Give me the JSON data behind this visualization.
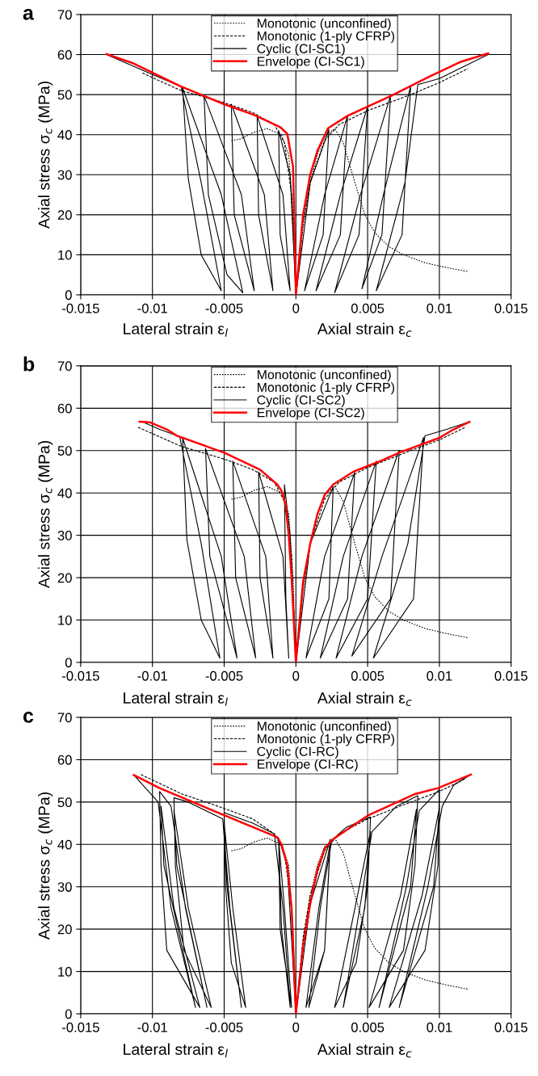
{
  "chart_data": [
    {
      "type": "line",
      "title": "a",
      "xlabel": "Lateral strain ε$_{l}$",
      "ylabel": "Axial stress σ$_{c}$ (MPa)",
      "annotations": [
        "Axial strain ε$_{c}$"
      ],
      "xlim": [
        -0.015,
        0.015
      ],
      "ylim": [
        0,
        70
      ],
      "xticks": [
        -0.015,
        -0.01,
        -0.005,
        0,
        0.005,
        0.01,
        0.015
      ],
      "yticks": [
        0,
        10,
        20,
        30,
        40,
        50,
        60,
        70
      ],
      "grid": true,
      "legend": "top",
      "marker": "none",
      "series": [
        {
          "name": "Monotonic (unconfined)",
          "color": "#000000",
          "line_style": "dotted",
          "x": [
            -0.0045,
            -0.0038,
            -0.003,
            -0.002,
            -0.001,
            -0.0005,
            -0.0002,
            0,
            null,
            0,
            0.0005,
            0.001,
            0.0015,
            0.002,
            0.0027,
            0.0033,
            0.0037,
            0.0042,
            0.0048,
            0.0055,
            0.0065,
            0.0075,
            0.009,
            0.0105,
            0.012
          ],
          "values": [
            38.5,
            39,
            40.5,
            41.5,
            40,
            35,
            20,
            0,
            null,
            0,
            17,
            28,
            35,
            39.5,
            41.5,
            38,
            33,
            27,
            20,
            15.5,
            12,
            10,
            8,
            6.8,
            5.8
          ]
        },
        {
          "name": "Monotonic (1-ply CFRP)",
          "color": "#000000",
          "line_style": "dashed",
          "x": [
            -0.0107,
            -0.008,
            -0.005,
            -0.003,
            -0.0015,
            -0.0008,
            -0.0003,
            0,
            null,
            0,
            0.0005,
            0.001,
            0.002,
            0.003,
            0.005,
            0.008,
            0.01,
            0.012
          ],
          "values": [
            55.4,
            51,
            48,
            45.5,
            42.5,
            38,
            25,
            0,
            null,
            0,
            18,
            28,
            38.5,
            42.5,
            46,
            50,
            53,
            56.5
          ]
        },
        {
          "name": "Cyclic (CI-SC1)",
          "color": "#000000",
          "line_style": "solid",
          "x": [
            0,
            -0.0004,
            -0.0012,
            -0.0011,
            -0.0004,
            -0.0009,
            -0.0027,
            -0.0026,
            -0.0016,
            -0.0022,
            -0.0045,
            -0.0043,
            -0.0029,
            -0.0038,
            -0.0064,
            -0.0061,
            -0.0048,
            -0.0037,
            -0.0052,
            -0.0079,
            -0.0075,
            -0.0066,
            -0.0052,
            -0.0066,
            -0.008,
            -0.01,
            -0.0132,
            null,
            0,
            0.001,
            0.0023,
            0.0019,
            0.0006,
            0.002,
            0.0036,
            0.0031,
            0.0014,
            0.0031,
            0.005,
            0.0044,
            0.0027,
            0.0045,
            0.0066,
            0.006,
            0.0046,
            0.0061,
            0.008,
            0.0074,
            0.0056,
            0.0076,
            0.0085,
            0.01,
            0.0134
          ],
          "values": [
            0,
            30,
            41,
            15,
            1,
            25,
            44.6,
            20,
            1,
            25,
            47.6,
            20,
            1,
            25,
            49.7,
            25,
            5,
            0.5,
            25,
            51.7,
            29,
            10,
            1,
            28,
            52,
            55,
            60,
            null,
            0,
            28,
            41.3,
            15,
            1,
            25,
            44.7,
            15,
            1,
            25,
            47,
            15,
            0.5,
            25,
            49.8,
            15,
            1.5,
            25,
            52.1,
            15,
            1,
            28,
            52.5,
            54,
            60
          ]
        },
        {
          "name": "Envelope (CI-SC1)",
          "color": "#ff0000",
          "line_style": "solid",
          "x": [
            -0.0132,
            -0.0114,
            -0.008,
            -0.005,
            -0.0029,
            -0.0011,
            -0.0006,
            -0.0002,
            0,
            null,
            0,
            0.0005,
            0.001,
            0.0015,
            0.00224,
            0.0036,
            0.0067,
            0.0093,
            0.0115,
            0.0134
          ],
          "values": [
            60.1,
            57.9,
            52,
            47.6,
            44.9,
            41.9,
            40.2,
            32,
            0,
            null,
            0,
            20,
            30,
            36,
            41.6,
            44.7,
            49.8,
            54.5,
            58.2,
            60.3
          ]
        }
      ]
    },
    {
      "type": "line",
      "title": "b",
      "xlabel": "Lateral strain ε$_{l}$",
      "ylabel": "Axial stress σ$_{c}$ (MPa)",
      "annotations": [
        "Axial strain ε$_{c}$"
      ],
      "xlim": [
        -0.015,
        0.015
      ],
      "ylim": [
        0,
        70
      ],
      "xticks": [
        -0.015,
        -0.01,
        -0.005,
        0,
        0.005,
        0.01,
        0.015
      ],
      "yticks": [
        0,
        10,
        20,
        30,
        40,
        50,
        60,
        70
      ],
      "grid": true,
      "legend": "top",
      "marker": "none",
      "series": [
        {
          "name": "Monotonic (unconfined)",
          "color": "#000000",
          "line_style": "dotted",
          "x": [
            -0.0045,
            -0.0038,
            -0.003,
            -0.002,
            -0.001,
            -0.0005,
            -0.0002,
            0,
            null,
            0,
            0.0005,
            0.001,
            0.0015,
            0.002,
            0.0027,
            0.0033,
            0.0037,
            0.0042,
            0.0048,
            0.0055,
            0.0065,
            0.0075,
            0.009,
            0.0105,
            0.012
          ],
          "values": [
            38.5,
            39,
            40.5,
            41.5,
            40,
            35,
            20,
            0,
            null,
            0,
            17,
            28,
            35,
            39.5,
            41.5,
            38,
            33,
            27,
            20,
            15.5,
            12,
            10,
            8,
            6.8,
            5.8
          ]
        },
        {
          "name": "Monotonic (1-ply CFRP)",
          "color": "#000000",
          "line_style": "dashed",
          "x": [
            -0.011,
            -0.008,
            -0.005,
            -0.003,
            -0.0015,
            -0.0008,
            -0.0003,
            0,
            null,
            0,
            0.0005,
            0.001,
            0.002,
            0.003,
            0.005,
            0.008,
            0.01,
            0.0118
          ],
          "values": [
            55.5,
            51,
            48,
            45.5,
            42.5,
            38,
            25,
            0,
            null,
            0,
            18,
            28,
            38.5,
            42.5,
            46,
            50,
            52.5,
            55.5
          ]
        },
        {
          "name": "Cyclic (CI-SC2)",
          "color": "#000000",
          "line_style": "solid",
          "x": [
            0,
            -0.0004,
            -0.0008,
            -0.0007,
            -0.0005,
            -0.0009,
            -0.0026,
            -0.0025,
            -0.0016,
            -0.0021,
            -0.0044,
            -0.0042,
            -0.0028,
            -0.0036,
            -0.0063,
            -0.006,
            -0.0041,
            -0.0052,
            -0.0079,
            -0.0076,
            -0.0066,
            -0.0053,
            -0.0066,
            -0.0081,
            -0.0095,
            -0.0105,
            null,
            0,
            0.001,
            0.0026,
            0.0023,
            0.0007,
            0.002,
            0.0041,
            0.0036,
            0.0017,
            0.0033,
            0.0056,
            0.005,
            0.0028,
            0.0046,
            0.0072,
            0.0066,
            0.0039,
            0.006,
            0.0089,
            0.0082,
            0.0054,
            0.0078,
            0.009,
            0.0105,
            0.012
          ],
          "values": [
            0,
            30,
            42,
            15,
            1,
            25,
            45,
            20,
            1,
            25,
            47.5,
            20,
            1,
            25,
            50.5,
            25,
            1,
            25,
            53,
            29,
            10,
            1,
            28,
            53.3,
            55,
            56.5,
            null,
            0,
            28,
            41.5,
            15,
            1,
            25,
            44.8,
            15,
            1,
            25,
            47.5,
            15,
            1,
            25,
            50.1,
            15,
            1.5,
            25,
            53.1,
            15,
            1,
            28,
            53.5,
            55,
            56.7
          ]
        },
        {
          "name": "Envelope (CI-SC2)",
          "color": "#ff0000",
          "line_style": "solid",
          "x": [
            -0.0109,
            -0.0102,
            -0.009,
            -0.0083,
            -0.005,
            -0.0025,
            -0.0013,
            -0.001,
            -0.0007,
            -0.0005,
            -0.0003,
            0,
            null,
            0,
            0.0005,
            0.001,
            0.0015,
            0.002,
            0.0026,
            0.004,
            0.006,
            0.0072,
            0.01,
            0.011,
            0.0121
          ],
          "values": [
            56.8,
            56.7,
            55,
            53.5,
            49.5,
            45.5,
            42,
            40.5,
            37,
            30,
            20,
            0,
            null,
            0,
            19,
            28,
            35,
            39.5,
            42,
            45,
            47.7,
            49.5,
            53,
            55,
            56.8
          ]
        }
      ]
    },
    {
      "type": "line",
      "title": "c",
      "xlabel": "Lateral strain ε$_{l}$",
      "ylabel": "Axial stress σ$_{c}$ (MPa)",
      "annotations": [
        "Axial strain ε$_{c}$"
      ],
      "xlim": [
        -0.015,
        0.015
      ],
      "ylim": [
        0,
        70
      ],
      "xticks": [
        -0.015,
        -0.01,
        -0.005,
        0,
        0.005,
        0.01,
        0.015
      ],
      "yticks": [
        0,
        10,
        20,
        30,
        40,
        50,
        60,
        70
      ],
      "grid": true,
      "legend": "top",
      "marker": "none",
      "series": [
        {
          "name": "Monotonic (unconfined)",
          "color": "#000000",
          "line_style": "dotted",
          "x": [
            -0.0045,
            -0.0038,
            -0.003,
            -0.002,
            -0.001,
            -0.0005,
            -0.0002,
            0,
            null,
            0,
            0.0005,
            0.001,
            0.0015,
            0.002,
            0.0027,
            0.0033,
            0.0037,
            0.0042,
            0.0048,
            0.0055,
            0.0065,
            0.0075,
            0.009,
            0.0105,
            0.012
          ],
          "values": [
            38.5,
            39,
            40.5,
            41.5,
            40,
            35,
            20,
            0,
            null,
            0,
            17,
            28,
            35,
            39.5,
            41.5,
            38,
            33,
            27,
            20,
            15.5,
            12,
            10,
            8,
            6.8,
            5.8
          ]
        },
        {
          "name": "Monotonic (1-ply CFRP)",
          "color": "#000000",
          "line_style": "dashed",
          "x": [
            -0.0108,
            -0.008,
            -0.005,
            -0.003,
            -0.0015,
            -0.0008,
            -0.0003,
            0,
            null,
            0,
            0.0005,
            0.001,
            0.002,
            0.003,
            0.005,
            0.008,
            0.01,
            0.0118
          ],
          "values": [
            56.5,
            52,
            48.5,
            46,
            42.5,
            38,
            25,
            0,
            null,
            0,
            18,
            28,
            38.5,
            42.5,
            46,
            50,
            52.5,
            55.5
          ]
        },
        {
          "name": "Cyclic (CI-RC)",
          "color": "#000000",
          "line_style": "solid",
          "x": [
            0,
            -0.0006,
            -0.0012,
            -0.0011,
            -0.0003,
            -0.0008,
            -0.0012,
            -0.001,
            -0.0004,
            -0.0009,
            -0.0015,
            -0.003,
            -0.005,
            -0.0049,
            -0.0045,
            -0.0035,
            -0.0044,
            -0.005,
            -0.0048,
            -0.0038,
            -0.0046,
            -0.0051,
            -0.0075,
            -0.0085,
            -0.0084,
            -0.0078,
            -0.0059,
            -0.0075,
            -0.0085,
            -0.0083,
            -0.0062,
            -0.0077,
            -0.0087,
            -0.0095,
            -0.0094,
            -0.009,
            -0.0067,
            -0.0085,
            -0.0094,
            -0.0092,
            -0.007,
            -0.0087,
            -0.0096,
            -0.0113,
            null,
            0,
            0.001,
            0.0024,
            0.002,
            0.0007,
            0.0016,
            0.0024,
            0.002,
            0.0009,
            0.0017,
            0.0025,
            0.0035,
            0.0052,
            0.005,
            0.0042,
            0.0027,
            0.0043,
            0.0052,
            0.0048,
            0.0033,
            0.0046,
            0.0053,
            0.007,
            0.0085,
            0.0083,
            0.0075,
            0.0051,
            0.0073,
            0.0084,
            0.008,
            0.0058,
            0.0077,
            0.0086,
            0.01,
            0.0099,
            0.009,
            0.0065,
            0.0088,
            0.01,
            0.0096,
            0.0072,
            0.0092,
            0.0102,
            0.011,
            0.0122
          ],
          "values": [
            0,
            35,
            41.5,
            20,
            1.5,
            25,
            41,
            20,
            1.5,
            25,
            42.5,
            45,
            47.5,
            30,
            12,
            1.5,
            25,
            45,
            30,
            1.5,
            25,
            46,
            50,
            51,
            35,
            15,
            1.5,
            25,
            48,
            35,
            1.5,
            25,
            49,
            52.5,
            35,
            15,
            1.5,
            25,
            49,
            35,
            1.5,
            25,
            50,
            56.4,
            null,
            0,
            26,
            41.2,
            15,
            1.5,
            25,
            40.5,
            15,
            1.5,
            25,
            41,
            44,
            46.5,
            30,
            12,
            1.5,
            28,
            43,
            25,
            1.5,
            28,
            43,
            49,
            51.5,
            35,
            15,
            1.5,
            28,
            48.3,
            30,
            1.5,
            30,
            48,
            53,
            35,
            15,
            1.5,
            28,
            48.6,
            30,
            1.5,
            30,
            49,
            54,
            56.5
          ]
        },
        {
          "name": "Envelope (CI-RC)",
          "color": "#ff0000",
          "line_style": "solid",
          "x": [
            -0.0113,
            -0.0095,
            -0.005,
            -0.0013,
            -0.001,
            -0.0006,
            -0.0003,
            0,
            null,
            0,
            0.0005,
            0.001,
            0.0015,
            0.002,
            0.0025,
            0.005,
            0.0083,
            0.0099,
            0.0122
          ],
          "values": [
            56.4,
            53.3,
            46.9,
            41.7,
            40,
            35,
            25,
            0,
            null,
            0,
            16,
            26,
            34,
            39,
            41,
            46.8,
            51.9,
            53.3,
            56.5
          ]
        }
      ]
    }
  ]
}
